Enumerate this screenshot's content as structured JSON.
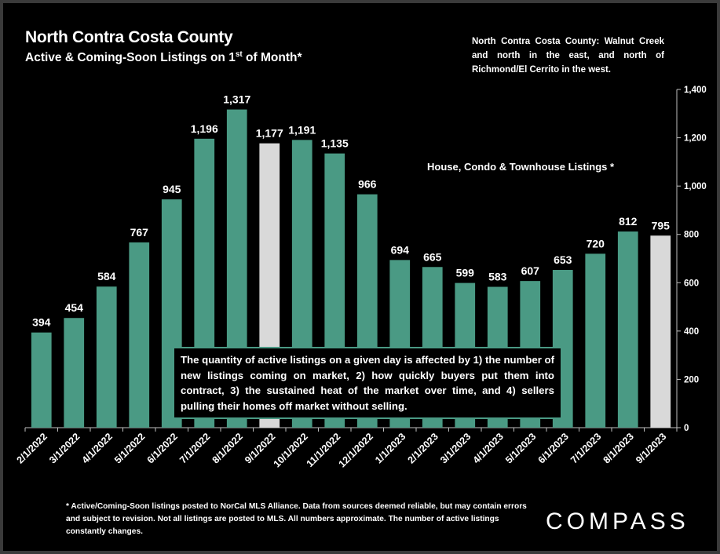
{
  "title": "North Contra Costa County",
  "subtitle": {
    "text": "Active & Coming-Soon Listings on 1",
    "sup": "st",
    "tail": " of Month*"
  },
  "region_note": "North Contra Costa County: Walnut Creek and north in the east, and north of Richmond/El Cerrito in the west.",
  "series_label": "House, Condo & Townhouse Listings *",
  "callout": "The quantity of active listings on a given day is affected by 1) the number of new listings coming on market, 2) how quickly buyers put them into contract, 3) the sustained heat of the market over time, and 4) sellers pulling their homes off market without selling.",
  "footnote": "* Active/Coming-Soon listings posted to NorCal MLS Alliance. Data from sources deemed reliable, but may contain errors and subject to revision. Not all listings are posted to MLS. All numbers approximate. The number of active listings constantly changes.",
  "logo": "COMPASS",
  "colors": {
    "bar": "#4a9a84",
    "highlight": "#d9d9d9",
    "background": "#000000"
  },
  "chart_data": {
    "type": "bar",
    "categories": [
      "2/1/2022",
      "3/1/2022",
      "4/1/2022",
      "5/1/2022",
      "6/1/2022",
      "7/1/2022",
      "8/1/2022",
      "9/1/2022",
      "10/1/2022",
      "11/1/2022",
      "12/1/2022",
      "1/1/2023",
      "2/1/2023",
      "3/1/2023",
      "4/1/2023",
      "5/1/2023",
      "6/1/2023",
      "7/1/2023",
      "8/1/2023",
      "9/1/2023"
    ],
    "values": [
      394,
      454,
      584,
      767,
      945,
      1196,
      1317,
      1177,
      1191,
      1135,
      966,
      694,
      665,
      599,
      583,
      607,
      653,
      720,
      812,
      795
    ],
    "value_labels": [
      "394",
      "454",
      "584",
      "767",
      "945",
      "1,196",
      "1,317",
      "1,177",
      "1,191",
      "1,135",
      "966",
      "694",
      "665",
      "599",
      "583",
      "607",
      "653",
      "720",
      "812",
      "795"
    ],
    "highlighted": [
      "9/1/2022",
      "9/1/2023"
    ],
    "ylim": [
      0,
      1400
    ],
    "yticks": [
      0,
      200,
      400,
      600,
      800,
      1000,
      1200,
      1400
    ],
    "ytick_labels": [
      "0",
      "200",
      "400",
      "600",
      "800",
      "1,000",
      "1,200",
      "1,400"
    ],
    "y_axis_side": "right",
    "grid": false
  }
}
